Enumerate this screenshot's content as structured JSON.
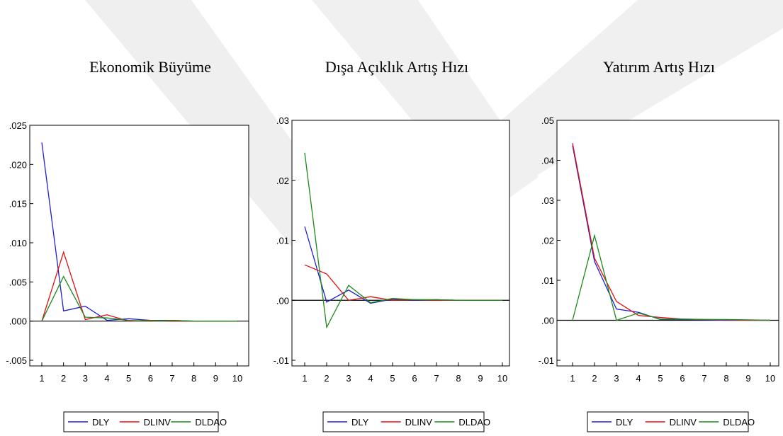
{
  "colors": {
    "DLY": "#1f1fd6",
    "DLINV": "#e01010",
    "DLDAO": "#1a8a1a",
    "watermark": "#eeeeee"
  },
  "titles": [
    "Ekonomik Büyüme",
    "Dışa Açıklık Artış Hızı",
    "Yatırım Artış Hızı"
  ],
  "chart_data": [
    {
      "type": "line",
      "title": "Ekonomik Büyüme",
      "x": [
        1,
        2,
        3,
        4,
        5,
        6,
        7,
        8,
        9,
        10
      ],
      "ylim": [
        -0.005,
        0.025
      ],
      "yticks": [
        ".025",
        ".020",
        ".015",
        ".010",
        ".005",
        ".000",
        "-.005"
      ],
      "ytick_values": [
        0.025,
        0.02,
        0.015,
        0.01,
        0.005,
        0.0,
        -0.005
      ],
      "xticks": [
        "1",
        "2",
        "3",
        "4",
        "5",
        "6",
        "7",
        "8",
        "9",
        "10"
      ],
      "zero_line": true,
      "legend_position": "bottom",
      "series": [
        {
          "name": "DLY",
          "values": [
            0.0228,
            0.0013,
            0.0019,
            0.0001,
            0.0003,
            0.0001,
            0.0001,
            0.0,
            0.0,
            0.0
          ]
        },
        {
          "name": "DLINV",
          "values": [
            0.0,
            0.0088,
            0.0002,
            0.0008,
            0.0,
            0.0001,
            0.0,
            0.0,
            0.0,
            0.0
          ]
        },
        {
          "name": "DLDAO",
          "values": [
            0.0,
            0.0057,
            0.0005,
            0.0004,
            0.0001,
            0.0,
            0.0001,
            0.0,
            0.0,
            0.0
          ]
        }
      ]
    },
    {
      "type": "line",
      "title": "Dışa Açıklık Artış Hızı",
      "x": [
        1,
        2,
        3,
        4,
        5,
        6,
        7,
        8,
        9,
        10
      ],
      "ylim": [
        -0.012,
        0.03
      ],
      "yticks": [
        ".03",
        ".02",
        ".01",
        ".00",
        "-.01"
      ],
      "ytick_values": [
        0.03,
        0.02,
        0.01,
        0.0,
        -0.01
      ],
      "xticks": [
        "1",
        "2",
        "3",
        "4",
        "5",
        "6",
        "7",
        "8",
        "9",
        "10"
      ],
      "zero_line": true,
      "legend_position": "bottom",
      "series": [
        {
          "name": "DLY",
          "values": [
            0.0123,
            -0.0003,
            0.0017,
            -0.0005,
            0.0002,
            0.0,
            0.0001,
            0.0,
            0.0,
            0.0
          ]
        },
        {
          "name": "DLINV",
          "values": [
            0.0059,
            0.0044,
            0.0,
            0.0006,
            0.0,
            0.0001,
            0.0,
            0.0,
            0.0,
            0.0
          ]
        },
        {
          "name": "DLDAO",
          "values": [
            0.0246,
            -0.0045,
            0.0025,
            -0.0004,
            0.0003,
            0.0001,
            0.0001,
            0.0,
            0.0,
            0.0
          ]
        }
      ]
    },
    {
      "type": "line",
      "title": "Yatırım Artış Hızı",
      "x": [
        1,
        2,
        3,
        4,
        5,
        6,
        7,
        8,
        9,
        10
      ],
      "ylim": [
        -0.012,
        0.05
      ],
      "yticks": [
        ".05",
        ".04",
        ".03",
        ".02",
        ".01",
        ".00",
        "-.01"
      ],
      "ytick_values": [
        0.05,
        0.04,
        0.03,
        0.02,
        0.01,
        0.0,
        -0.01
      ],
      "xticks": [
        "1",
        "2",
        "3",
        "4",
        "5",
        "6",
        "7",
        "8",
        "9",
        "10"
      ],
      "zero_line": true,
      "legend_position": "bottom",
      "series": [
        {
          "name": "DLY",
          "values": [
            0.0437,
            0.0147,
            0.0028,
            0.002,
            0.0002,
            0.0002,
            0.0001,
            0.0,
            0.0,
            0.0
          ]
        },
        {
          "name": "DLINV",
          "values": [
            0.0443,
            0.0155,
            0.0047,
            0.0012,
            0.0007,
            0.0003,
            0.0002,
            0.0001,
            0.0,
            0.0
          ]
        },
        {
          "name": "DLDAO",
          "values": [
            0.0,
            0.0212,
            0.0,
            0.0018,
            0.0003,
            0.0003,
            0.0002,
            0.0002,
            0.0001,
            0.0
          ]
        }
      ]
    }
  ]
}
